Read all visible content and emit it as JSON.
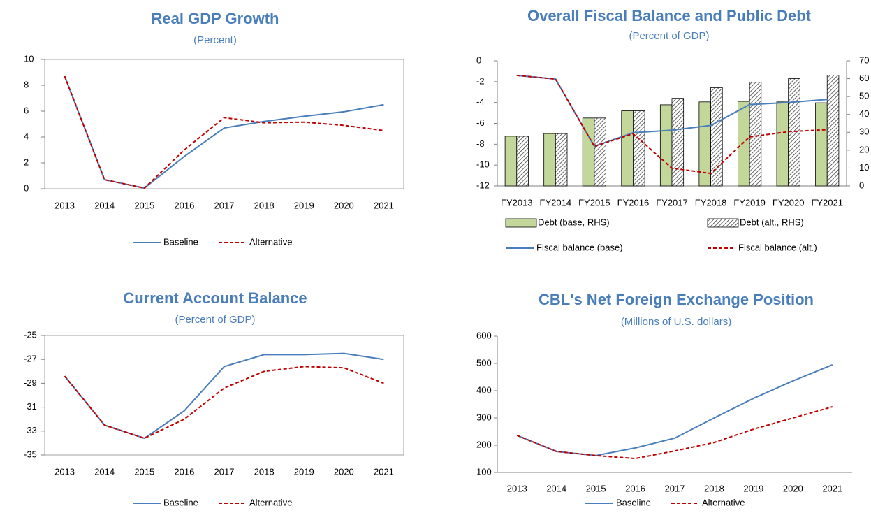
{
  "chart_data": [
    {
      "type": "line",
      "title": "Real GDP Growth",
      "subtitle": "(Percent)",
      "categories": [
        "2013",
        "2014",
        "2015",
        "2016",
        "2017",
        "2018",
        "2019",
        "2020",
        "2021"
      ],
      "series": [
        {
          "name": "Baseline",
          "color": "#4a7ebb",
          "dash": false,
          "values": [
            8.7,
            0.7,
            0.05,
            2.5,
            4.7,
            5.2,
            5.6,
            5.95,
            6.5
          ]
        },
        {
          "name": "Alternative",
          "color": "#c00000",
          "dash": true,
          "values": [
            8.7,
            0.7,
            0.05,
            3.0,
            5.5,
            5.1,
            5.15,
            4.9,
            4.5
          ]
        }
      ],
      "ylim": [
        0,
        10
      ],
      "yticks": [
        0,
        2,
        4,
        6,
        8,
        10
      ],
      "frame": true
    },
    {
      "type": "combo",
      "title": "Overall Fiscal Balance and Public Debt",
      "subtitle": "(Percent of GDP)",
      "categories": [
        "FY2013",
        "FY2014",
        "FY2015",
        "FY2016",
        "FY2017",
        "FY2018",
        "FY2019",
        "FY2020",
        "FY2021"
      ],
      "series": [
        {
          "name": "Debt (base, RHS)",
          "type": "bar",
          "axis": "y2",
          "color": "#c4d79b",
          "values": [
            27.8,
            29.3,
            38,
            42,
            45.4,
            47,
            47.3,
            47,
            46.5
          ]
        },
        {
          "name": "Debt (alt., RHS)",
          "type": "bar",
          "axis": "y2",
          "color": "#404040",
          "pattern": "hatch",
          "values": [
            27.8,
            29.3,
            38,
            42,
            49,
            55,
            58,
            60,
            62
          ]
        },
        {
          "name": "Fiscal balance (base)",
          "type": "line",
          "color": "#4a7ebb",
          "dash": false,
          "values": [
            -1.4,
            -1.75,
            -8.2,
            -6.9,
            -6.65,
            -6.2,
            -4.2,
            -4.0,
            -3.7
          ]
        },
        {
          "name": "Fiscal balance (alt.)",
          "type": "line",
          "color": "#c00000",
          "dash": true,
          "values": [
            -1.4,
            -1.75,
            -8.2,
            -7.0,
            -10.3,
            -10.8,
            -7.3,
            -6.8,
            -6.6
          ]
        }
      ],
      "ylim": [
        -12,
        0
      ],
      "yticks": [
        -12,
        -10,
        -8,
        -6,
        -4,
        -2,
        0
      ],
      "y2lim": [
        0,
        70
      ],
      "y2ticks": [
        0,
        10,
        20,
        30,
        40,
        50,
        60,
        70
      ],
      "frame": false
    },
    {
      "type": "line",
      "title": "Current Account Balance",
      "subtitle": "(Percent of GDP)",
      "categories": [
        "2013",
        "2014",
        "2015",
        "2016",
        "2017",
        "2018",
        "2019",
        "2020",
        "2021"
      ],
      "series": [
        {
          "name": "Baseline",
          "color": "#4a7ebb",
          "dash": false,
          "values": [
            -28.4,
            -32.5,
            -33.6,
            -31.3,
            -27.6,
            -26.6,
            -26.6,
            -26.5,
            -27.0
          ]
        },
        {
          "name": "Alternative",
          "color": "#c00000",
          "dash": true,
          "values": [
            -28.4,
            -32.5,
            -33.6,
            -32.0,
            -29.4,
            -28.0,
            -27.6,
            -27.7,
            -29.0
          ]
        }
      ],
      "ylim": [
        -35,
        -25
      ],
      "yticks": [
        -35,
        -33,
        -31,
        -29,
        -27,
        -25
      ],
      "frame": true
    },
    {
      "type": "line",
      "title": "CBL's Net Foreign Exchange Position",
      "subtitle": "(Millions of U.S. dollars)",
      "categories": [
        "2013",
        "2014",
        "2015",
        "2016",
        "2017",
        "2018",
        "2019",
        "2020",
        "2021"
      ],
      "series": [
        {
          "name": "Baseline",
          "color": "#4a7ebb",
          "dash": false,
          "values": [
            236,
            177,
            162,
            190,
            226,
            300,
            372,
            436,
            495
          ]
        },
        {
          "name": "Alternative",
          "color": "#c00000",
          "dash": true,
          "values": [
            236,
            177,
            162,
            151,
            179,
            210,
            259,
            300,
            341
          ]
        }
      ],
      "ylim": [
        100,
        600
      ],
      "yticks": [
        100,
        200,
        300,
        400,
        500,
        600
      ],
      "frame": false
    }
  ]
}
